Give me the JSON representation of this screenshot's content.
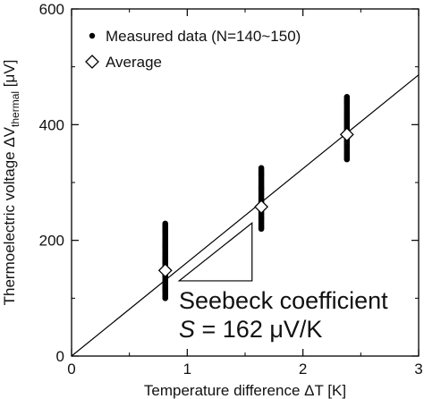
{
  "chart_data": {
    "type": "scatter",
    "xlabel": "Temperature difference ΔT [K]",
    "ylabel_main": "Thermoelectric voltage  ΔV",
    "ylabel_sub": "thermal",
    "ylabel_unit": " [μV]",
    "xlim": [
      0,
      3
    ],
    "ylim": [
      0,
      600
    ],
    "xticks": [
      "0",
      "1",
      "2",
      "3"
    ],
    "yticks": [
      "0",
      "200",
      "400",
      "600"
    ],
    "grid": false,
    "legend_position": "top-left",
    "series": [
      {
        "name": "Measured data (N=140~150)",
        "marker": "dot",
        "color": "#000000",
        "groups": [
          {
            "x": 0.81,
            "y_min": 100,
            "y_max": 230
          },
          {
            "x": 1.64,
            "y_min": 220,
            "y_max": 325
          },
          {
            "x": 2.38,
            "y_min": 340,
            "y_max": 450
          }
        ]
      },
      {
        "name": "Average",
        "marker": "diamond",
        "color": "#000000",
        "x": [
          0.81,
          1.64,
          2.38
        ],
        "y": [
          148,
          258,
          383
        ]
      }
    ],
    "fit_line": {
      "slope": 162,
      "intercept": 0
    },
    "slope_triangle": {
      "x0": 0.93,
      "x1": 1.56,
      "y0": 130,
      "y1": 230
    },
    "annotation": {
      "line1": "Seebeck coefficient",
      "line2_symbol": "S",
      "line2_value": " = 162 μV/K"
    }
  }
}
